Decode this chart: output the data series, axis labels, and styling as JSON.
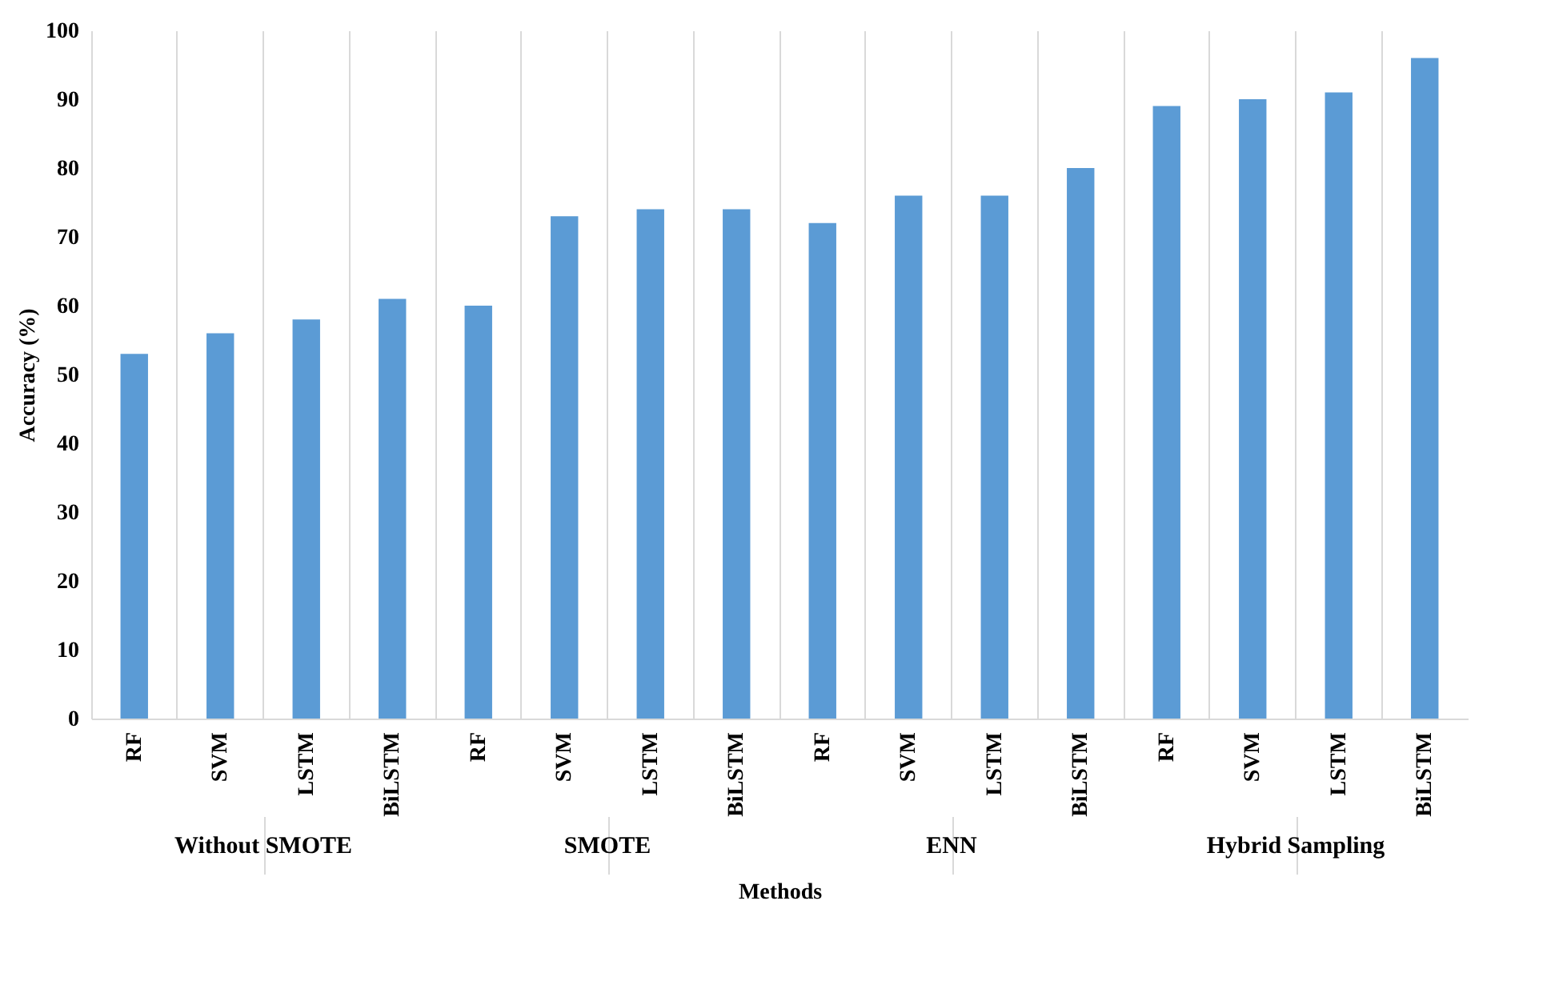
{
  "chart_data": {
    "type": "bar",
    "xlabel": "Methods",
    "ylabel": "Accuracy (%)",
    "categories": [
      "RF",
      "SVM",
      "LSTM",
      "BiLSTM",
      "RF",
      "SVM",
      "LSTM",
      "BiLSTM",
      "RF",
      "SVM",
      "LSTM",
      "BiLSTM",
      "RF",
      "SVM",
      "LSTM",
      "BiLSTM"
    ],
    "values": [
      53,
      56,
      58,
      61,
      60,
      73,
      74,
      74,
      72,
      76,
      76,
      80,
      89,
      90,
      91,
      96
    ],
    "color": "#5b9bd5",
    "ylim": [
      0,
      100
    ],
    "yticks": [
      0,
      10,
      20,
      30,
      40,
      50,
      60,
      70,
      80,
      90,
      100
    ],
    "grid": "x",
    "annotations": [
      "Without SMOTE",
      "SMOTE",
      "ENN",
      "Hybrid Sampling"
    ]
  }
}
